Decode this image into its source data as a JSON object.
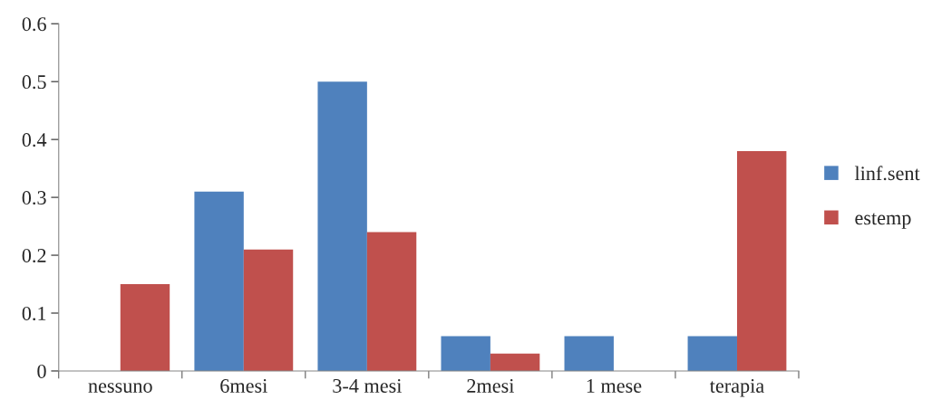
{
  "chart_data": {
    "type": "bar",
    "categories": [
      "nessuno",
      "6mesi",
      "3-4 mesi",
      "2mesi",
      "1 mese",
      "terapia"
    ],
    "series": [
      {
        "name": "linf.sent",
        "color": "#4f81bd",
        "values": [
          0,
          0.31,
          0.5,
          0.06,
          0.06,
          0.06
        ]
      },
      {
        "name": "estemp",
        "color": "#c0504d",
        "values": [
          0.15,
          0.21,
          0.24,
          0.03,
          0,
          0.38
        ]
      }
    ],
    "ylim": [
      0,
      0.6
    ],
    "yticks": [
      {
        "value": 0,
        "label": "0"
      },
      0.1,
      0.2,
      0.3,
      0.4,
      0.5,
      0.6
    ],
    "grid": false,
    "legend": "right"
  }
}
